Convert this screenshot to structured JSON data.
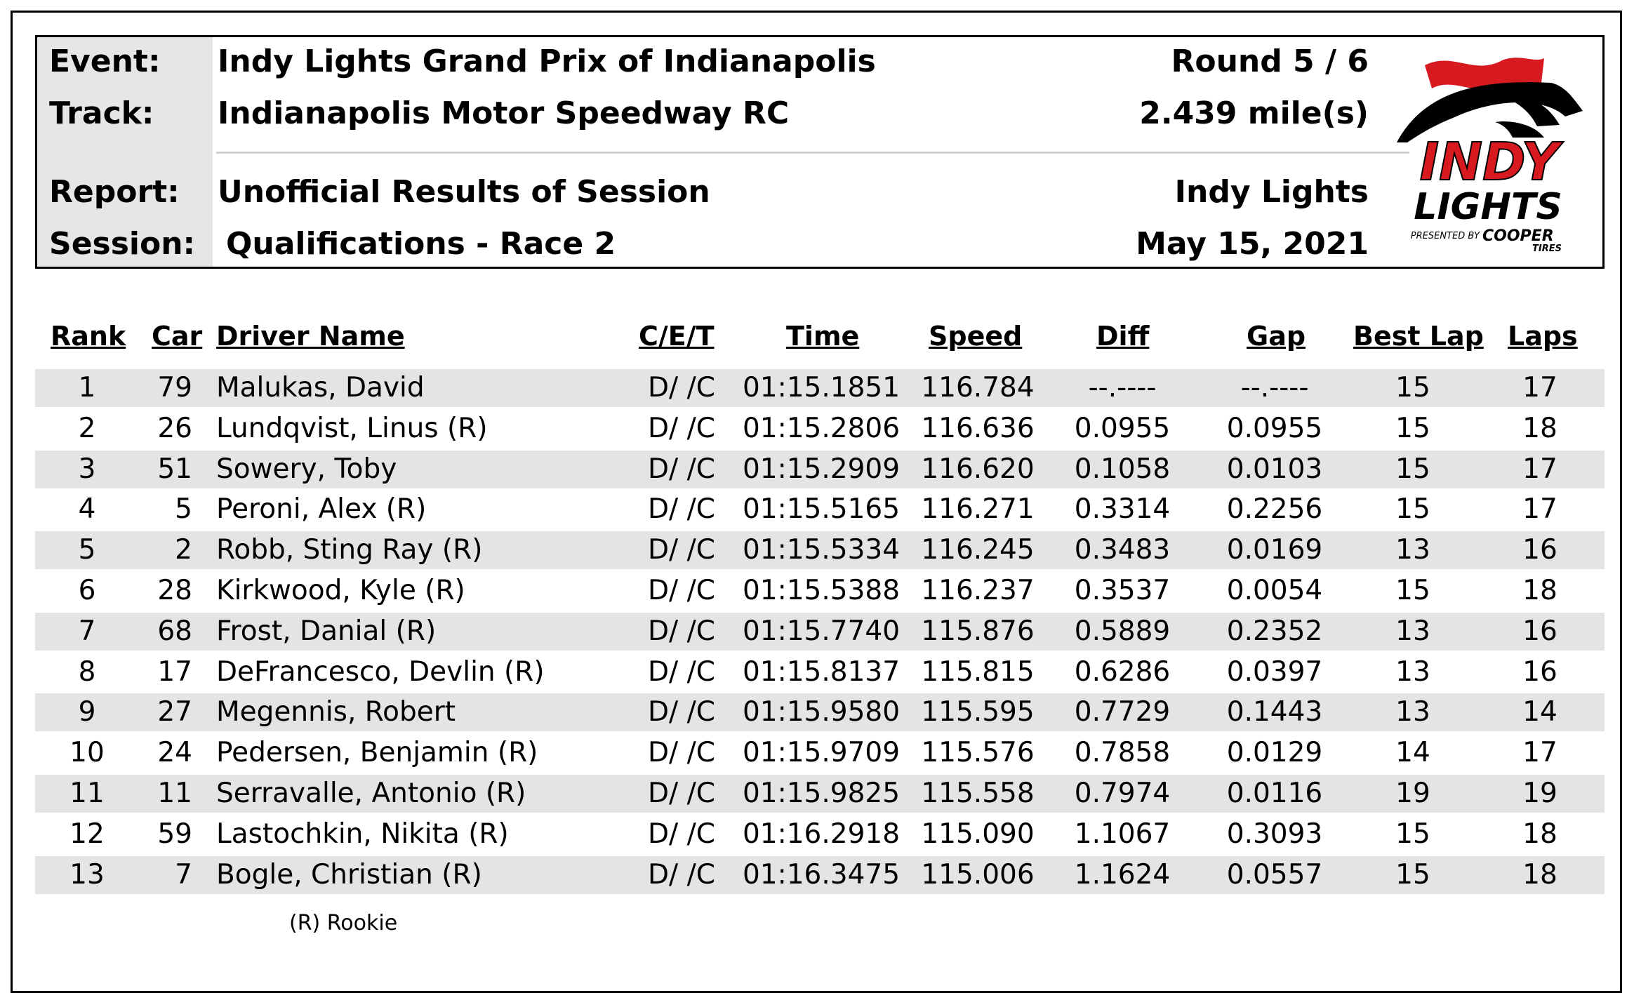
{
  "header": {
    "event_label": "Event:",
    "event_value": "Indy Lights Grand Prix of Indianapolis",
    "track_label": "Track:",
    "track_value": "Indianapolis Motor Speedway RC",
    "report_label": "Report:",
    "report_value": "Unofficial Results of Session",
    "session_label": "Session:",
    "session_value": "Qualifications - Race 2",
    "round": "Round 5 / 6",
    "distance": "2.439 mile(s)",
    "series": "Indy Lights",
    "date": "May 15, 2021"
  },
  "logo": {
    "line1": "INDY",
    "line2": "LIGHTS",
    "presented_by": "PRESENTED BY",
    "sponsor": "COOPER",
    "sponsor_sub": "TIRES",
    "colors": {
      "red": "#d71920",
      "black": "#000000"
    }
  },
  "table": {
    "columns": [
      "Rank",
      "Car",
      "Driver Name",
      "C/E/T",
      "Time",
      "Speed",
      "Diff",
      "Gap",
      "Best Lap",
      "Laps"
    ],
    "rows": [
      [
        "1",
        "79",
        "Malukas, David",
        "D/ /C",
        "01:15.1851",
        "116.784",
        "--.----",
        "--.----",
        "15",
        "17"
      ],
      [
        "2",
        "26",
        "Lundqvist, Linus (R)",
        "D/ /C",
        "01:15.2806",
        "116.636",
        "0.0955",
        "0.0955",
        "15",
        "18"
      ],
      [
        "3",
        "51",
        "Sowery, Toby",
        "D/ /C",
        "01:15.2909",
        "116.620",
        "0.1058",
        "0.0103",
        "15",
        "17"
      ],
      [
        "4",
        "5",
        "Peroni, Alex (R)",
        "D/ /C",
        "01:15.5165",
        "116.271",
        "0.3314",
        "0.2256",
        "15",
        "17"
      ],
      [
        "5",
        "2",
        "Robb, Sting Ray (R)",
        "D/ /C",
        "01:15.5334",
        "116.245",
        "0.3483",
        "0.0169",
        "13",
        "16"
      ],
      [
        "6",
        "28",
        "Kirkwood, Kyle (R)",
        "D/ /C",
        "01:15.5388",
        "116.237",
        "0.3537",
        "0.0054",
        "15",
        "18"
      ],
      [
        "7",
        "68",
        "Frost, Danial (R)",
        "D/ /C",
        "01:15.7740",
        "115.876",
        "0.5889",
        "0.2352",
        "13",
        "16"
      ],
      [
        "8",
        "17",
        "DeFrancesco, Devlin (R)",
        "D/ /C",
        "01:15.8137",
        "115.815",
        "0.6286",
        "0.0397",
        "13",
        "16"
      ],
      [
        "9",
        "27",
        "Megennis, Robert",
        "D/ /C",
        "01:15.9580",
        "115.595",
        "0.7729",
        "0.1443",
        "13",
        "14"
      ],
      [
        "10",
        "24",
        "Pedersen, Benjamin (R)",
        "D/ /C",
        "01:15.9709",
        "115.576",
        "0.7858",
        "0.0129",
        "14",
        "17"
      ],
      [
        "11",
        "11",
        "Serravalle, Antonio (R)",
        "D/ /C",
        "01:15.9825",
        "115.558",
        "0.7974",
        "0.0116",
        "19",
        "19"
      ],
      [
        "12",
        "59",
        "Lastochkin, Nikita (R)",
        "D/ /C",
        "01:16.2918",
        "115.090",
        "1.1067",
        "0.3093",
        "15",
        "18"
      ],
      [
        "13",
        "7",
        "Bogle, Christian (R)",
        "D/ /C",
        "01:16.3475",
        "115.006",
        "1.1624",
        "0.0557",
        "15",
        "18"
      ]
    ]
  },
  "footnote": "(R) Rookie"
}
